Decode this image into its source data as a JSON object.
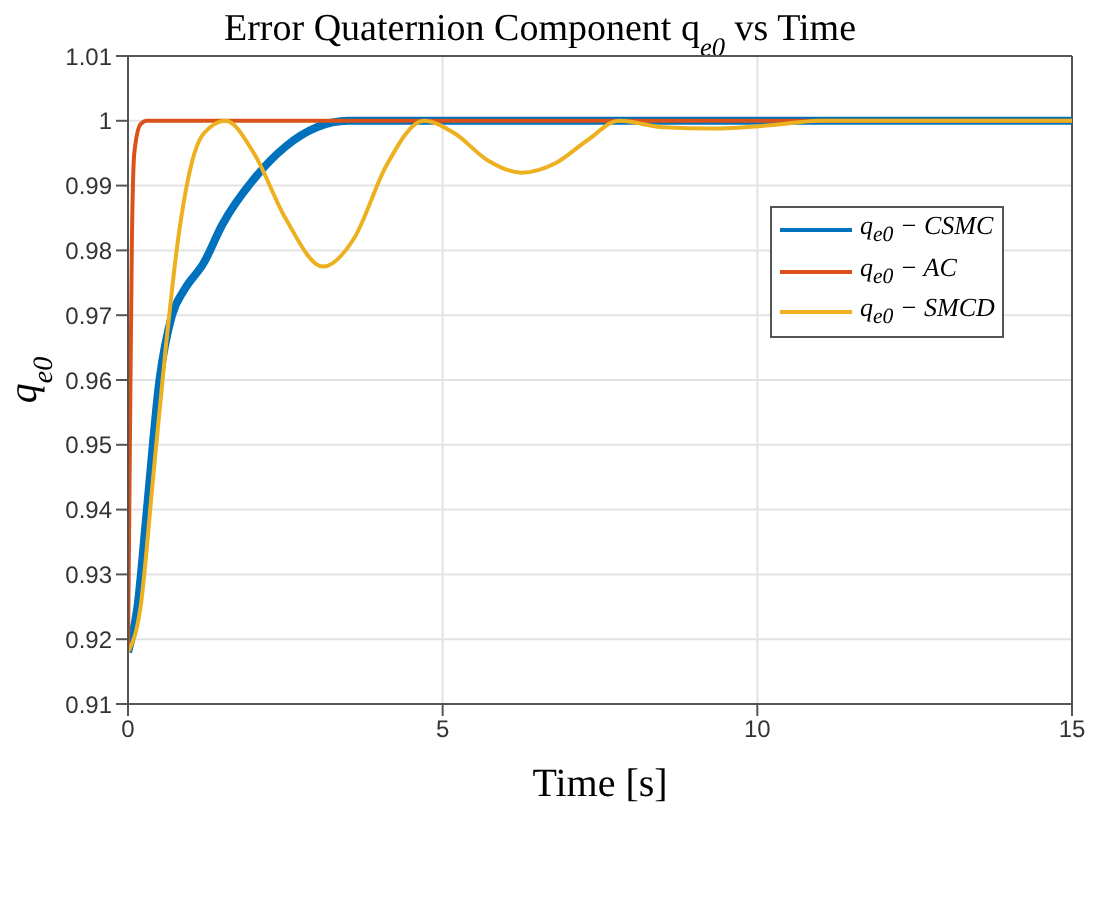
{
  "chart_data": {
    "type": "line",
    "title": "Error Quaternion Component q$_{e0}$ vs Time",
    "xlabel": "Time [s]",
    "ylabel": "q$_{e0}$",
    "xlim": [
      0,
      15
    ],
    "xticks": [
      0,
      5,
      10,
      15
    ],
    "ylim": [
      0.91,
      1.01
    ],
    "yticks": [
      0.91,
      0.92,
      0.93,
      0.94,
      0.95,
      0.96,
      0.97,
      0.98,
      0.99,
      1,
      1.01
    ],
    "grid": true,
    "legend": "right",
    "marker": "none",
    "line_style": "solid",
    "series": [
      {
        "name": "q$_{e0}$ − CSMC",
        "color": "#0072bd",
        "x": [
          0,
          0.15,
          0.3,
          0.5,
          0.7,
          0.9,
          1.2,
          1.5,
          2,
          2.5,
          3,
          3.5,
          15
        ],
        "values": [
          0.918,
          0.925,
          0.94,
          0.96,
          0.97,
          0.974,
          0.978,
          0.984,
          0.991,
          0.996,
          0.999,
          1,
          1
        ]
      },
      {
        "name": "q$_{e0}$ − AC",
        "color": "#d95319",
        "x": [
          0,
          0.03,
          0.06,
          0.1,
          0.2,
          0.3,
          15
        ],
        "values": [
          0.918,
          0.95,
          0.98,
          0.995,
          0.9995,
          1,
          1
        ]
      },
      {
        "name": "q$_{e0}$ − SMCD",
        "color": "#edb120",
        "x": [
          0,
          0.2,
          0.4,
          0.6,
          0.8,
          1,
          1.2,
          1.55,
          2,
          2.5,
          3.1,
          3.6,
          4.1,
          4.7,
          5.2,
          5.7,
          6.25,
          6.8,
          7.3,
          7.8,
          8.5,
          9.3,
          10.2,
          11,
          15
        ],
        "values": [
          0.918,
          0.925,
          0.945,
          0.965,
          0.982,
          0.993,
          0.998,
          1,
          0.995,
          0.985,
          0.9775,
          0.982,
          0.993,
          1,
          0.998,
          0.994,
          0.992,
          0.9935,
          0.997,
          1,
          0.999,
          0.9988,
          0.9993,
          1,
          1
        ]
      }
    ]
  }
}
